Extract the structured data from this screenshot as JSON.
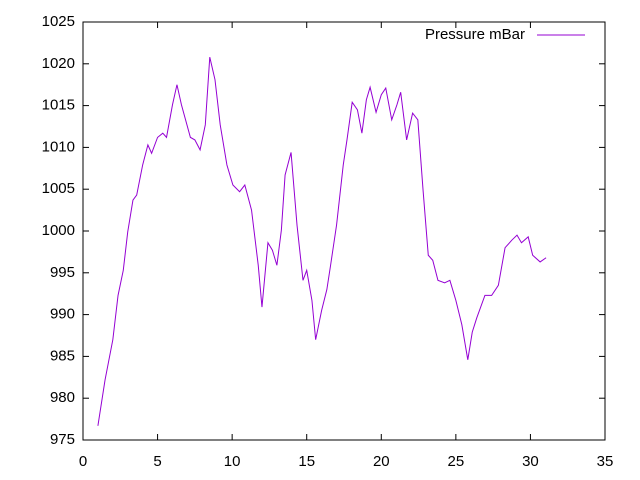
{
  "chart_data": {
    "type": "line",
    "x": [
      1,
      1.48,
      2.0,
      2.35,
      2.7,
      3.0,
      3.35,
      3.6,
      4.0,
      4.35,
      4.6,
      5.0,
      5.35,
      5.6,
      6.0,
      6.3,
      6.6,
      7.2,
      7.5,
      7.85,
      8.2,
      8.5,
      8.85,
      9.2,
      9.65,
      10.05,
      10.5,
      10.85,
      11.3,
      11.75,
      12.0,
      12.4,
      12.7,
      13.0,
      13.3,
      13.55,
      13.95,
      14.35,
      14.75,
      15.0,
      15.35,
      15.6,
      16.0,
      16.35,
      16.6,
      17.0,
      17.45,
      17.7,
      18.05,
      18.4,
      18.7,
      19.0,
      19.25,
      19.65,
      20.0,
      20.3,
      20.7,
      21.05,
      21.3,
      21.7,
      22.1,
      22.45,
      22.8,
      23.15,
      23.45,
      23.8,
      24.25,
      24.6,
      25.0,
      25.4,
      25.8,
      26.1,
      26.4,
      26.95,
      27.4,
      27.85,
      28.3,
      28.75,
      29.1,
      29.4,
      29.85,
      30.15,
      30.65,
      31.05
    ],
    "series": [
      {
        "name": "Pressure mBar",
        "color": "#9400d3",
        "values": [
          976.7,
          982.2,
          987,
          992.3,
          995.3,
          999.9,
          1003.7,
          1004.3,
          1007.9,
          1010.3,
          1009.3,
          1011.2,
          1011.7,
          1011.2,
          1015.1,
          1017.5,
          1015.1,
          1011.2,
          1010.9,
          1009.7,
          1012.7,
          1020.8,
          1018.1,
          1012.7,
          1007.9,
          1005.5,
          1004.7,
          1005.5,
          1002.5,
          995.9,
          990.9,
          998.6,
          997.7,
          995.9,
          1000.1,
          1006.7,
          1009.4,
          1000.7,
          994.1,
          995.3,
          991.7,
          987,
          990.5,
          993,
          995.9,
          1000.7,
          1007.9,
          1010.9,
          1015.4,
          1014.5,
          1011.7,
          1015.7,
          1017.2,
          1014.2,
          1016.3,
          1017.1,
          1013.3,
          1015.1,
          1016.6,
          1010.9,
          1014.1,
          1013.3,
          1004.9,
          997.1,
          996.5,
          994.1,
          993.8,
          994.1,
          991.7,
          988.8,
          984.6,
          987.9,
          989.6,
          992.3,
          992.3,
          993.5,
          998.0,
          998.9,
          999.5,
          998.6,
          999.3,
          997.1,
          996.3,
          996.8
        ]
      }
    ],
    "xlim": [
      0,
      35
    ],
    "xticks": [
      0,
      5,
      10,
      15,
      20,
      25,
      30,
      35
    ],
    "ylim": [
      975,
      1025
    ],
    "yticks": [
      975,
      980,
      985,
      990,
      995,
      1000,
      1005,
      1010,
      1015,
      1020,
      1025
    ],
    "legend": "top-right"
  }
}
